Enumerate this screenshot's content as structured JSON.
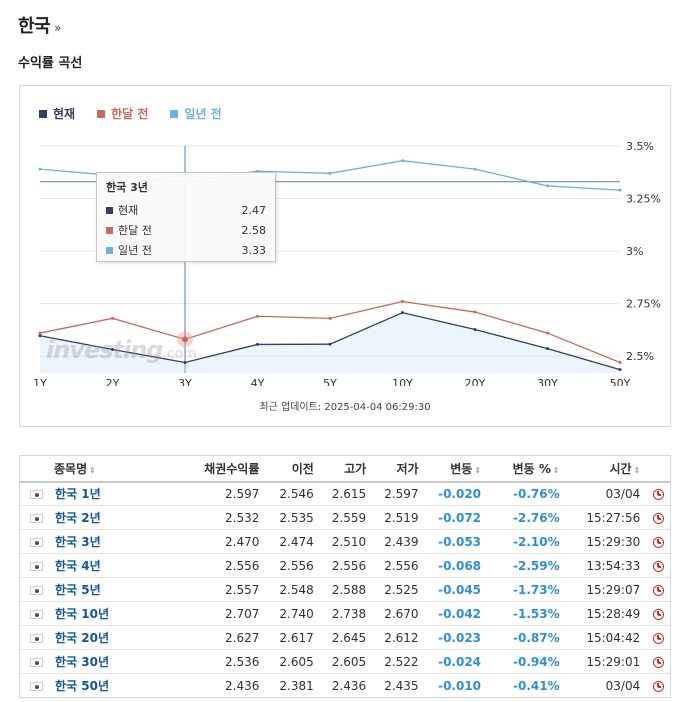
{
  "header": {
    "title": "한국",
    "chevron": "»"
  },
  "section": {
    "title": "수익률 곡선"
  },
  "legend": [
    {
      "label": "현재",
      "color": "#2f3e6b"
    },
    {
      "label": "한달 전",
      "color": "#c8695a"
    },
    {
      "label": "일년 전",
      "color": "#6ab3da"
    }
  ],
  "tooltip": {
    "title": "한국 3년",
    "rows": [
      {
        "label": "현재",
        "value": "2.47",
        "color": "#2f3e6b"
      },
      {
        "label": "한달 전",
        "value": "2.58",
        "color": "#c8695a"
      },
      {
        "label": "일년 전",
        "value": "3.33",
        "color": "#6ab3da"
      }
    ]
  },
  "watermark": {
    "brand": "investing",
    "suffix": ".com"
  },
  "update_note": "최근 업데이트: 2025-04-04 06:29:30",
  "chart_data": {
    "type": "line",
    "categories": [
      "1Y",
      "2Y",
      "3Y",
      "4Y",
      "5Y",
      "10Y",
      "20Y",
      "30Y",
      "50Y"
    ],
    "series": [
      {
        "name": "현재",
        "color": "#2f3e6b",
        "values": [
          2.597,
          2.532,
          2.47,
          2.556,
          2.557,
          2.707,
          2.627,
          2.536,
          2.436
        ]
      },
      {
        "name": "한달 전",
        "color": "#c8695a",
        "values": [
          2.61,
          2.68,
          2.58,
          2.69,
          2.68,
          2.76,
          2.71,
          2.61,
          2.47
        ]
      },
      {
        "name": "일년 전",
        "color": "#6ab3da",
        "values": [
          3.39,
          3.36,
          3.33,
          3.38,
          3.37,
          3.43,
          3.39,
          3.31,
          3.29
        ]
      }
    ],
    "y_ticks": [
      "3.5%",
      "3.25%",
      "3%",
      "2.75%",
      "2.5%"
    ],
    "y_tick_values": [
      3.5,
      3.25,
      3.0,
      2.75,
      2.5
    ],
    "ylim": [
      2.42,
      3.5
    ],
    "reference_line": 3.33,
    "crosshair_category": "3Y",
    "grid": "horizontal",
    "legend_position": "top-left"
  },
  "table": {
    "headers": [
      "종목명",
      "채권수익률",
      "이전",
      "고가",
      "저가",
      "변동",
      "변동 %",
      "시간"
    ],
    "sort_icon": "⇕",
    "rows": [
      {
        "name": "한국 1년",
        "yield": "2.597",
        "prev": "2.546",
        "high": "2.615",
        "low": "2.597",
        "chg": "-0.020",
        "chg_pct": "-0.76%",
        "time": "03/04"
      },
      {
        "name": "한국 2년",
        "yield": "2.532",
        "prev": "2.535",
        "high": "2.559",
        "low": "2.519",
        "chg": "-0.072",
        "chg_pct": "-2.76%",
        "time": "15:27:56"
      },
      {
        "name": "한국 3년",
        "yield": "2.470",
        "prev": "2.474",
        "high": "2.510",
        "low": "2.439",
        "chg": "-0.053",
        "chg_pct": "-2.10%",
        "time": "15:29:30"
      },
      {
        "name": "한국 4년",
        "yield": "2.556",
        "prev": "2.556",
        "high": "2.556",
        "low": "2.556",
        "chg": "-0.068",
        "chg_pct": "-2.59%",
        "time": "13:54:33"
      },
      {
        "name": "한국 5년",
        "yield": "2.557",
        "prev": "2.548",
        "high": "2.588",
        "low": "2.525",
        "chg": "-0.045",
        "chg_pct": "-1.73%",
        "time": "15:29:07"
      },
      {
        "name": "한국 10년",
        "yield": "2.707",
        "prev": "2.740",
        "high": "2.738",
        "low": "2.670",
        "chg": "-0.042",
        "chg_pct": "-1.53%",
        "time": "15:28:49"
      },
      {
        "name": "한국 20년",
        "yield": "2.627",
        "prev": "2.617",
        "high": "2.645",
        "low": "2.612",
        "chg": "-0.023",
        "chg_pct": "-0.87%",
        "time": "15:04:42"
      },
      {
        "name": "한국 30년",
        "yield": "2.536",
        "prev": "2.605",
        "high": "2.605",
        "low": "2.522",
        "chg": "-0.024",
        "chg_pct": "-0.94%",
        "time": "15:29:01"
      },
      {
        "name": "한국 50년",
        "yield": "2.436",
        "prev": "2.381",
        "high": "2.436",
        "low": "2.435",
        "chg": "-0.010",
        "chg_pct": "-0.41%",
        "time": "03/04"
      }
    ]
  }
}
